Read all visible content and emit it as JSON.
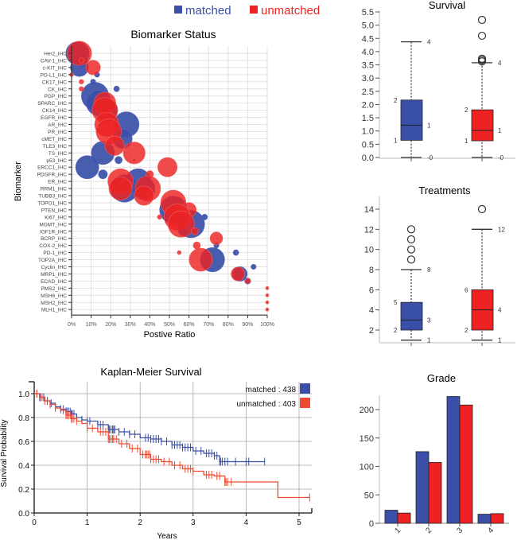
{
  "colors": {
    "matched": "#3a4fa8",
    "unmatched": "#ee2222",
    "km_matched": "#3a50a8",
    "km_unmatched": "#f04a30",
    "grid": "#e2e2e2",
    "km_grid": "#a8a8a8"
  },
  "legend": {
    "matched": "matched",
    "unmatched": "unmatched"
  },
  "chart_data": [
    {
      "id": "biomarker",
      "type": "scatter",
      "title": "Biomarker Status",
      "xlabel": "Postive Ratio",
      "ylabel": "Biomarker",
      "xlim": [
        0,
        100
      ],
      "x_ticks": [
        "0%",
        "10%",
        "20%",
        "30%",
        "40%",
        "50%",
        "60%",
        "70%",
        "80%",
        "90%",
        "100%"
      ],
      "categories": [
        "Her2_IHC",
        "CAV-1_IHC",
        "c-KIT_IHC",
        "PD-L1_IHC",
        "CK17_IHC",
        "CK_IHC",
        "PGP_IHC",
        "SPARC_IHC",
        "CK14_IHC",
        "EGFR_IHC",
        "AR_IHC",
        "PR_IHC",
        "cMET_IHC",
        "TLE3_IHC",
        "TS_IHC",
        "p53_IHC",
        "ERCC1_IHC",
        "PDGFR_IHC",
        "ER_IHC",
        "RRM1_IHC",
        "TUBB3_IHC",
        "TOPO1_IHC",
        "PTEN_IHC",
        "Ki67_IHC",
        "MGMT_IHC",
        "IGF1R_IHC",
        "BCRP_IHC",
        "COX-2_IHC",
        "PD-1_IHC",
        "TOP2A_IHC",
        "Cyclin_IHC",
        "MRP1_IHC",
        "ECAD_IHC",
        "PMS2_IHC",
        "MSH6_IHC",
        "MSH2_IHC",
        "MLH1_IHC"
      ],
      "series": [
        {
          "name": "matched",
          "points": [
            {
              "cat": "Her2_IHC",
              "x": 3,
              "size": 10
            },
            {
              "cat": "CAV-1_IHC",
              "x": 5,
              "size": 3
            },
            {
              "cat": "c-KIT_IHC",
              "x": 4,
              "size": 6
            },
            {
              "cat": "PD-L1_IHC",
              "x": 13,
              "size": 0.5
            },
            {
              "cat": "CK17_IHC",
              "x": 11,
              "size": 0.5
            },
            {
              "cat": "CK_IHC",
              "x": 23,
              "size": 0.6
            },
            {
              "cat": "PGP_IHC",
              "x": 12,
              "size": 14
            },
            {
              "cat": "SPARC_IHC",
              "x": 14,
              "size": 12
            },
            {
              "cat": "CK14_IHC",
              "x": 18,
              "size": 9
            },
            {
              "cat": "AR_IHC",
              "x": 28,
              "size": 12
            },
            {
              "cat": "cMET_IHC",
              "x": 26,
              "size": 7
            },
            {
              "cat": "TS_IHC",
              "x": 16,
              "size": 10
            },
            {
              "cat": "p53_IHC",
              "x": 24,
              "size": 1
            },
            {
              "cat": "ERCC1_IHC",
              "x": 8,
              "size": 10
            },
            {
              "cat": "PDGFR_IHC",
              "x": 16,
              "size": 1.5
            },
            {
              "cat": "ER_IHC",
              "x": 34,
              "size": 12
            },
            {
              "cat": "RRM1_IHC",
              "x": 27,
              "size": 14
            },
            {
              "cat": "RRM1_IHC",
              "x": 37,
              "size": 9
            },
            {
              "cat": "PTEN_IHC",
              "x": 52,
              "size": 14
            },
            {
              "cat": "MGMT_IHC",
              "x": 61,
              "size": 14
            },
            {
              "cat": "Ki67_IHC",
              "x": 68,
              "size": 0.6
            },
            {
              "cat": "IGF1R_IHC",
              "x": 57,
              "size": 1.5
            },
            {
              "cat": "COX-2_IHC",
              "x": 74,
              "size": 0.5
            },
            {
              "cat": "TOP2A_IHC",
              "x": 72,
              "size": 11
            },
            {
              "cat": "PD-1_IHC",
              "x": 84,
              "size": 0.6
            },
            {
              "cat": "Cyclin_IHC",
              "x": 93,
              "size": 0.5
            },
            {
              "cat": "MRP1_IHC",
              "x": 86,
              "size": 4
            },
            {
              "cat": "ECAD_IHC",
              "x": 90,
              "size": 0.7
            }
          ]
        },
        {
          "name": "unmatched",
          "points": [
            {
              "cat": "Her2_IHC",
              "x": 4,
              "size": 11
            },
            {
              "cat": "CAV-1_IHC",
              "x": 5,
              "size": 0.5
            },
            {
              "cat": "c-KIT_IHC",
              "x": 11,
              "size": 4
            },
            {
              "cat": "PD-L1_IHC",
              "x": 0,
              "size": 0.3
            },
            {
              "cat": "CK17_IHC",
              "x": 5,
              "size": 0.4
            },
            {
              "cat": "CK_IHC",
              "x": 5,
              "size": 0.4
            },
            {
              "cat": "SPARC_IHC",
              "x": 17,
              "size": 9
            },
            {
              "cat": "CK14_IHC",
              "x": 17,
              "size": 12
            },
            {
              "cat": "AR_IHC",
              "x": 18,
              "size": 11
            },
            {
              "cat": "PR_IHC",
              "x": 19,
              "size": 12
            },
            {
              "cat": "TLE3_IHC",
              "x": 22,
              "size": 7
            },
            {
              "cat": "TS_IHC",
              "x": 32,
              "size": 9
            },
            {
              "cat": "p53_IHC",
              "x": 32,
              "size": 0.2
            },
            {
              "cat": "ERCC1_IHC",
              "x": 49,
              "size": 7
            },
            {
              "cat": "PDGFR_IHC",
              "x": 40,
              "size": 1
            },
            {
              "cat": "ER_IHC",
              "x": 25,
              "size": 12
            },
            {
              "cat": "RRM1_IHC",
              "x": 25,
              "size": 10
            },
            {
              "cat": "RRM1_IHC",
              "x": 39,
              "size": 12
            },
            {
              "cat": "TUBB3_IHC",
              "x": 37,
              "size": 7
            },
            {
              "cat": "TOPO1_IHC",
              "x": 52,
              "size": 12
            },
            {
              "cat": "PTEN_IHC",
              "x": 60,
              "size": 4
            },
            {
              "cat": "Ki67_IHC",
              "x": 45,
              "size": 0.4
            },
            {
              "cat": "Ki67_IHC",
              "x": 54,
              "size": 13
            },
            {
              "cat": "MGMT_IHC",
              "x": 56,
              "size": 13
            },
            {
              "cat": "IGF1R_IHC",
              "x": 63,
              "size": 1
            },
            {
              "cat": "BCRP_IHC",
              "x": 74,
              "size": 3
            },
            {
              "cat": "COX-2_IHC",
              "x": 64,
              "size": 1
            },
            {
              "cat": "PD-1_IHC",
              "x": 55,
              "size": 0.3
            },
            {
              "cat": "TOP2A_IHC",
              "x": 66,
              "size": 10
            },
            {
              "cat": "MRP1_IHC",
              "x": 85,
              "size": 3.5
            },
            {
              "cat": "ECAD_IHC",
              "x": 90,
              "size": 0.5
            },
            {
              "cat": "PMS2_IHC",
              "x": 100,
              "size": 0.2
            },
            {
              "cat": "MSH6_IHC",
              "x": 100,
              "size": 0.2
            },
            {
              "cat": "MSH2_IHC",
              "x": 100,
              "size": 0.2
            },
            {
              "cat": "MLH1_IHC",
              "x": 100,
              "size": 0.2
            }
          ]
        }
      ]
    },
    {
      "id": "survival",
      "type": "box",
      "title": "Survival",
      "ylim": [
        0,
        5.5
      ],
      "y_ticks": [
        "0.0",
        "0.5",
        "1.0",
        "1.5",
        "2.0",
        "2.5",
        "3.0",
        "3.5",
        "4.0",
        "4.5",
        "5.0",
        "5.5"
      ],
      "series": [
        {
          "name": "matched",
          "min": 0,
          "q1": 0.65,
          "median": 1.22,
          "q3": 2.17,
          "max": 4.37,
          "outliers": [],
          "labels": {
            "min": "-0",
            "q1": "1",
            "median": "1",
            "q3": "2",
            "max": "4"
          }
        },
        {
          "name": "unmatched",
          "min": 0,
          "q1": 0.63,
          "median": 1.02,
          "q3": 1.8,
          "max": 3.58,
          "outliers": [
            3.63,
            3.68,
            3.73,
            4.6,
            5.2
          ],
          "labels": {
            "min": "-0",
            "q1": "1",
            "median": "1",
            "q3": "2",
            "max": "4"
          }
        }
      ]
    },
    {
      "id": "treatments",
      "type": "box",
      "title": "Treatments",
      "ylim": [
        1,
        15
      ],
      "y_ticks": [
        "2",
        "4",
        "6",
        "8",
        "10",
        "12",
        "14"
      ],
      "series": [
        {
          "name": "matched",
          "min": 1,
          "q1": 2,
          "median": 3,
          "q3": 4.75,
          "max": 8,
          "outliers": [
            9,
            10,
            11,
            12
          ],
          "labels": {
            "min": "1",
            "q1": "2",
            "median": "3",
            "q3": "5",
            "max": "8"
          }
        },
        {
          "name": "unmatched",
          "min": 1,
          "q1": 2,
          "median": 4,
          "q3": 6,
          "max": 12,
          "outliers": [
            14
          ],
          "labels": {
            "min": "1",
            "q1": "2",
            "median": "4",
            "q3": "6",
            "max": "12"
          }
        }
      ]
    },
    {
      "id": "grade",
      "type": "bar",
      "title": "Grade",
      "categories": [
        "1",
        "2",
        "3",
        "4"
      ],
      "ylim": [
        0,
        225
      ],
      "y_ticks": [
        "0",
        "50",
        "100",
        "150",
        "200"
      ],
      "series": [
        {
          "name": "matched",
          "values": [
            23,
            126,
            223,
            16
          ]
        },
        {
          "name": "unmatched",
          "values": [
            18,
            107,
            208,
            17
          ]
        }
      ]
    },
    {
      "id": "km",
      "type": "line",
      "title": "Kaplan-Meier Survival",
      "xlabel": "Years",
      "ylabel": "Survival Probability",
      "xlim": [
        0,
        5.2
      ],
      "ylim": [
        0,
        1.05
      ],
      "x_ticks": [
        "0",
        "1",
        "2",
        "3",
        "4",
        "5"
      ],
      "y_ticks": [
        "0.0",
        "0.2",
        "0.4",
        "0.6",
        "0.8",
        "1.0"
      ],
      "legend": [
        {
          "name": "matched",
          "label": "matched : 438"
        },
        {
          "name": "unmatched",
          "label": "unmatched : 403"
        }
      ],
      "series": [
        {
          "name": "matched",
          "x": [
            0,
            0.1,
            0.2,
            0.3,
            0.4,
            0.5,
            0.6,
            0.7,
            0.8,
            0.9,
            1.0,
            1.2,
            1.4,
            1.6,
            1.8,
            2.0,
            2.2,
            2.4,
            2.6,
            2.8,
            3.0,
            3.2,
            3.4,
            3.5,
            4.35
          ],
          "y": [
            1.0,
            0.97,
            0.94,
            0.92,
            0.89,
            0.87,
            0.85,
            0.83,
            0.8,
            0.78,
            0.77,
            0.74,
            0.7,
            0.68,
            0.66,
            0.63,
            0.62,
            0.6,
            0.57,
            0.55,
            0.52,
            0.5,
            0.48,
            0.43,
            0.43
          ],
          "censor_x": [
            0.05,
            0.12,
            0.18,
            0.25,
            0.32,
            0.4,
            0.5,
            0.55,
            0.6,
            0.62,
            0.65,
            0.68,
            0.7,
            0.72,
            0.75,
            0.8,
            0.9,
            1.0,
            1.05,
            1.2,
            1.25,
            1.3,
            1.4,
            1.42,
            1.45,
            1.48,
            1.5,
            1.52,
            1.6,
            1.7,
            1.8,
            1.9,
            2.1,
            2.15,
            2.2,
            2.25,
            2.3,
            2.35,
            2.4,
            2.5,
            2.6,
            2.65,
            2.7,
            2.75,
            2.8,
            2.85,
            2.9,
            2.95,
            3.05,
            3.15,
            3.25,
            3.3,
            3.35,
            3.4,
            3.45,
            3.5,
            3.52,
            3.55,
            3.6,
            3.65,
            3.8,
            4.0,
            4.05,
            4.35
          ]
        },
        {
          "name": "unmatched",
          "x": [
            0,
            0.1,
            0.2,
            0.3,
            0.4,
            0.5,
            0.6,
            0.7,
            0.8,
            0.9,
            1.0,
            1.2,
            1.4,
            1.6,
            1.8,
            2.0,
            2.2,
            2.4,
            2.6,
            2.8,
            3.0,
            3.2,
            3.4,
            3.6,
            4.6,
            5.2
          ],
          "y": [
            1.0,
            0.97,
            0.94,
            0.91,
            0.88,
            0.86,
            0.82,
            0.79,
            0.77,
            0.75,
            0.71,
            0.68,
            0.62,
            0.58,
            0.54,
            0.49,
            0.45,
            0.43,
            0.4,
            0.37,
            0.35,
            0.32,
            0.31,
            0.26,
            0.13,
            0.13
          ],
          "censor_x": [
            0.05,
            0.1,
            0.15,
            0.2,
            0.3,
            0.4,
            0.55,
            0.6,
            0.62,
            0.65,
            0.68,
            0.7,
            0.72,
            0.75,
            0.8,
            1.0,
            1.1,
            1.25,
            1.3,
            1.35,
            1.4,
            1.42,
            1.45,
            1.48,
            1.5,
            1.55,
            1.65,
            1.75,
            1.85,
            1.95,
            2.05,
            2.1,
            2.12,
            2.15,
            2.18,
            2.2,
            2.25,
            2.3,
            2.35,
            2.45,
            2.55,
            2.65,
            2.75,
            2.85,
            2.9,
            2.95,
            3.0,
            3.25,
            3.3,
            3.35,
            3.45,
            3.5,
            3.6,
            3.62,
            3.65,
            3.72,
            5.2
          ]
        }
      ]
    }
  ]
}
